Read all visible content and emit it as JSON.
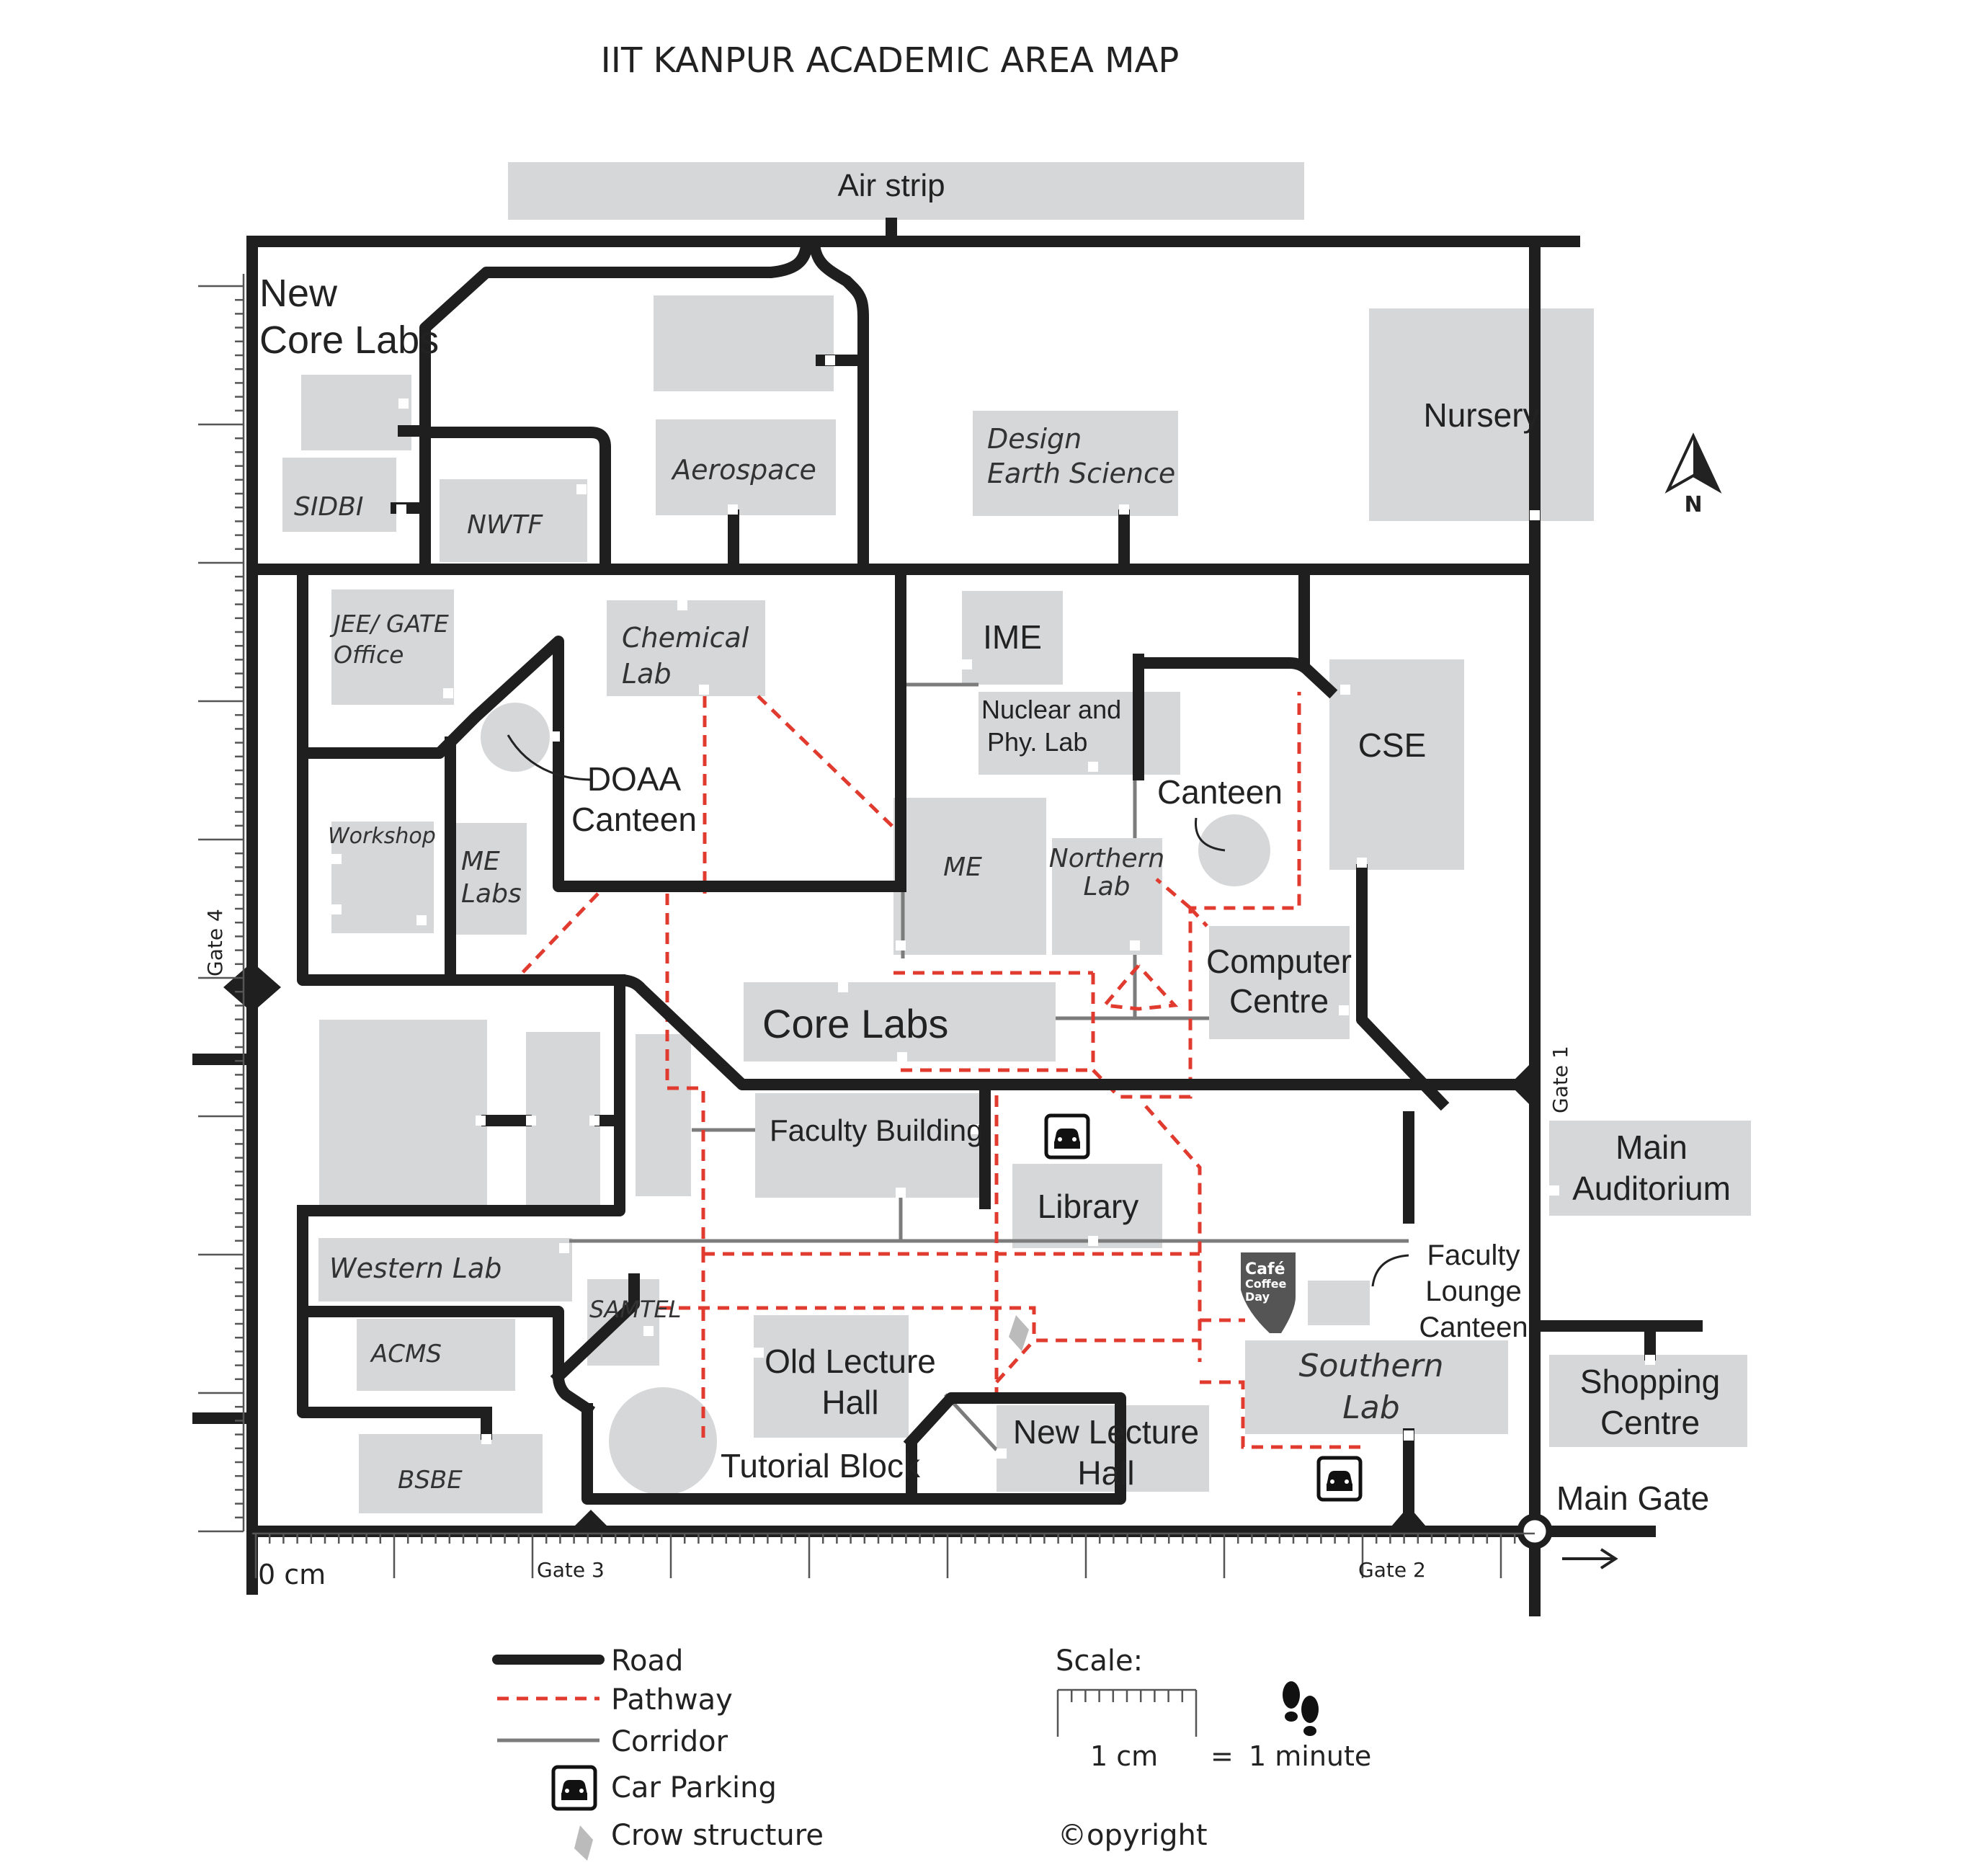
{
  "title": "IIT KANPUR ACADEMIC AREA MAP",
  "buildings": {
    "air_strip": "Air strip",
    "new_core_labs": [
      "New",
      "Core Labs"
    ],
    "sidbi": "SIDBI",
    "nwtf": "NWTF",
    "aerospace": "Aerospace",
    "design": [
      "Design",
      "Earth Science"
    ],
    "nursery": "Nursery",
    "jee_gate": [
      "JEE/ GATE",
      "Office"
    ],
    "chemical": [
      "Chemical",
      "Lab"
    ],
    "ime": "IME",
    "nuclear": [
      "Nuclear and",
      "Phy. Lab"
    ],
    "cse": "CSE",
    "doaa": [
      "DOAA",
      "Canteen"
    ],
    "canteen": "Canteen",
    "workshop": "Workshop",
    "me_labs": [
      "ME",
      "Labs"
    ],
    "me": "ME",
    "northern": [
      "Northern",
      "Lab"
    ],
    "computer_centre": [
      "Computer",
      "Centre"
    ],
    "core_labs": "Core Labs",
    "faculty_building": "Faculty Building",
    "library": "Library",
    "main_auditorium": [
      "Main",
      "Auditorium"
    ],
    "western_lab": "Western Lab",
    "faculty_lounge": [
      "Faculty",
      "Lounge",
      "Canteen"
    ],
    "samtel": "SAMTEL",
    "acms": "ACMS",
    "old_lecture": [
      "Old Lecture",
      "Hall"
    ],
    "southern": [
      "Southern",
      "Lab"
    ],
    "shopping": [
      "Shopping",
      "Centre"
    ],
    "tutorial_block": "Tutorial Block",
    "new_lecture": [
      "New Lecture",
      "Hall"
    ],
    "bsbe": "BSBE",
    "main_gate": "Main Gate",
    "cafe_logo": [
      "Café",
      "Coffee",
      "Day"
    ]
  },
  "gates": {
    "gate1": "Gate  1",
    "gate2": "Gate  2",
    "gate3": "Gate  3",
    "gate4": "Gate  4"
  },
  "compass": "N",
  "ruler_origin": "0 cm",
  "legend": {
    "road": "Road",
    "pathway": "Pathway",
    "corridor": "Corridor",
    "parking": "Car Parking",
    "crow": "Crow structure"
  },
  "scale": {
    "label": "Scale:",
    "unit": "1 cm",
    "equals": "=",
    "time": "1 minute"
  },
  "copyright": "©opyright",
  "colors": {
    "building": "#d6d7d8",
    "road": "#1f1f1f",
    "pathway": "#e13a2f",
    "corridor": "#7c7c7c"
  }
}
